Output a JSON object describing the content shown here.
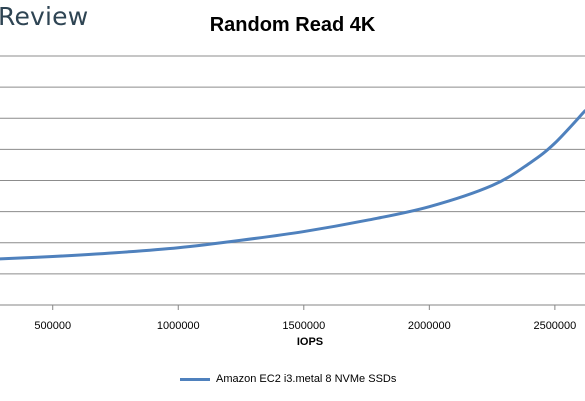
{
  "brand": {
    "text": "Review"
  },
  "chart_data": {
    "type": "line",
    "title": "Random Read 4K",
    "xlabel": "IOPS",
    "ylabel": "",
    "xlim": [
      290000,
      2620000
    ],
    "ylim": [
      0,
      10
    ],
    "x_ticks": [
      500000,
      1000000,
      1500000,
      2000000,
      2500000
    ],
    "grid": "horizontal",
    "legend_position": "bottom",
    "series": [
      {
        "name": "Amazon EC2 i3.metal 8 NVMe SSDs",
        "color": "#4f81bd",
        "x": [
          290000,
          500000,
          750000,
          1000000,
          1250000,
          1500000,
          1750000,
          2000000,
          2250000,
          2400000,
          2500000,
          2620000
        ],
        "y": [
          1.85,
          1.95,
          2.1,
          2.3,
          2.6,
          2.95,
          3.4,
          3.95,
          4.8,
          5.7,
          6.5,
          7.8
        ]
      }
    ]
  }
}
